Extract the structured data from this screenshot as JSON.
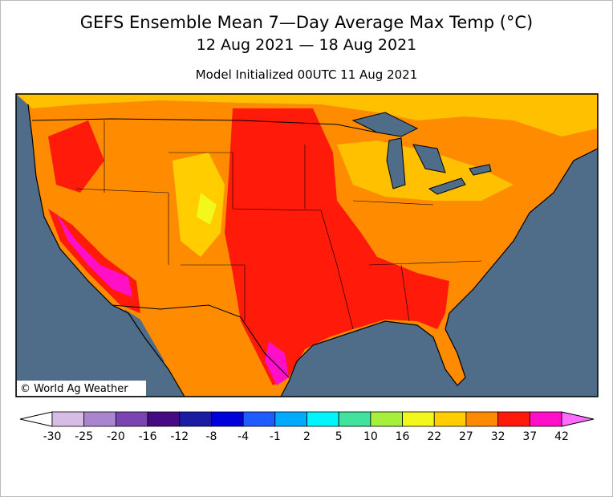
{
  "header": {
    "title": "GEFS Ensemble Mean 7—Day Average Max Temp (°C)",
    "subtitle": "12 Aug 2021 — 18 Aug 2021",
    "init": "Model Initialized 00UTC 11 Aug 2021"
  },
  "map": {
    "credit": "© World Ag Weather"
  },
  "colorbar": {
    "ticks": [
      -30,
      -25,
      -20,
      -16,
      -12,
      -8,
      -4,
      -1,
      2,
      5,
      10,
      16,
      22,
      27,
      32,
      37,
      42
    ],
    "colors": [
      "#d7bce6",
      "#a984cf",
      "#7a44b3",
      "#460a82",
      "#1c1ca3",
      "#0000dc",
      "#1f5cff",
      "#00aaff",
      "#00f5ff",
      "#3fe39e",
      "#a6ef3a",
      "#f2f71c",
      "#ffcd00",
      "#ff8a00",
      "#ff1a0a",
      "#ff10c8"
    ],
    "under_color": "#ffffff",
    "over_color": "#ff6aff"
  }
}
